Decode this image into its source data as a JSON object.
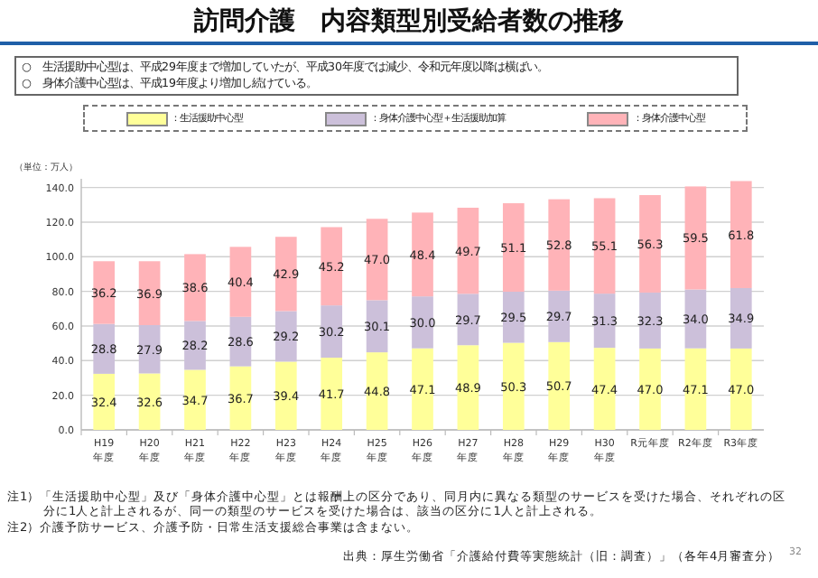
{
  "chart_data": {
    "type": "bar",
    "stacked": true,
    "title": "訪問介護　内容類型別受給者数の推移",
    "categories": [
      "H19\n年度",
      "H20\n年度",
      "H21\n年度",
      "H22\n年度",
      "H23\n年度",
      "H24\n年度",
      "H25\n年度",
      "H26\n年度",
      "H27\n年度",
      "H28\n年度",
      "H29\n年度",
      "H30\n年度",
      "R元年度",
      "R2年度",
      "R3年度"
    ],
    "series": [
      {
        "name": "：生活援助中心型",
        "color": "#ffff99",
        "values": [
          32.4,
          32.6,
          34.7,
          36.7,
          39.4,
          41.7,
          44.8,
          47.1,
          48.9,
          50.3,
          50.7,
          47.4,
          47.0,
          47.1,
          47.0
        ],
        "value_labels": [
          "32.4",
          "32.6",
          "34.7",
          "36.7",
          "39.4",
          "41.7",
          "44.8",
          "47.1",
          "48.9",
          "50.3",
          "50.7",
          "47.4",
          "47.0",
          "47.1",
          "47.0"
        ]
      },
      {
        "name": "：身体介護中心型＋生活援助加算",
        "color": "#ccc0da",
        "values": [
          28.8,
          27.9,
          28.2,
          28.6,
          29.2,
          30.2,
          30.1,
          30.0,
          29.7,
          29.5,
          29.7,
          31.3,
          32.3,
          34.0,
          34.9
        ],
        "value_labels": [
          "28.8",
          "27.9",
          "28.2",
          "28.6",
          "29.2",
          "30.2",
          "30.1",
          "30.0",
          "29.7",
          "29.5",
          "29.7",
          "31.3",
          "32.3",
          "34.0",
          "34.9"
        ]
      },
      {
        "name": "：身体介護中心型",
        "color": "#ffb3b8",
        "values": [
          36.2,
          36.9,
          38.6,
          40.4,
          42.9,
          45.2,
          47.0,
          48.4,
          49.7,
          51.1,
          52.8,
          55.1,
          56.3,
          59.5,
          61.8
        ],
        "value_labels": [
          "36.2",
          "36.9",
          "38.6",
          "40.4",
          "42.9",
          "45.2",
          "47.0",
          "48.4",
          "49.7",
          "51.1",
          "52.8",
          "55.1",
          "56.3",
          "59.5",
          "61.8"
        ]
      }
    ],
    "ylim": [
      0,
      145
    ],
    "yticks": [
      {
        "value": 0,
        "label": "0.0"
      },
      {
        "value": 20,
        "label": "20.0"
      },
      {
        "value": 40,
        "label": "40.0"
      },
      {
        "value": 60,
        "label": "60.0"
      },
      {
        "value": 80,
        "label": "80.0"
      },
      {
        "value": 100,
        "label": "100.0"
      },
      {
        "value": 120,
        "label": "120.0"
      },
      {
        "value": 140,
        "label": "140.0"
      }
    ],
    "grid": "y",
    "legend": "top",
    "annotations": [
      "○　生活援助中心型は、平成29年度まで増加していたが、平成30年度では減少、令和元年度以降は横ばい。",
      "○　身体介護中心型は、平成19年度より増加し続けている。",
      "（単位：万人）",
      "注1）「生活援助中心型」及び「身体介護中心型」とは報酬上の区分であり、同月内に異なる類型のサービスを受けた場合、それぞれの区分に1人と計上されるが、同一の類型のサービスを受けた場合は、該当の区分に1人と計上される。",
      "注2）介護予防サービス、介護予防・日常生活支援総合事業は含まない。",
      "出典：厚生労働省「介護給付費等実態統計（旧：調査）」（各年4月審査分）",
      "32"
    ]
  }
}
